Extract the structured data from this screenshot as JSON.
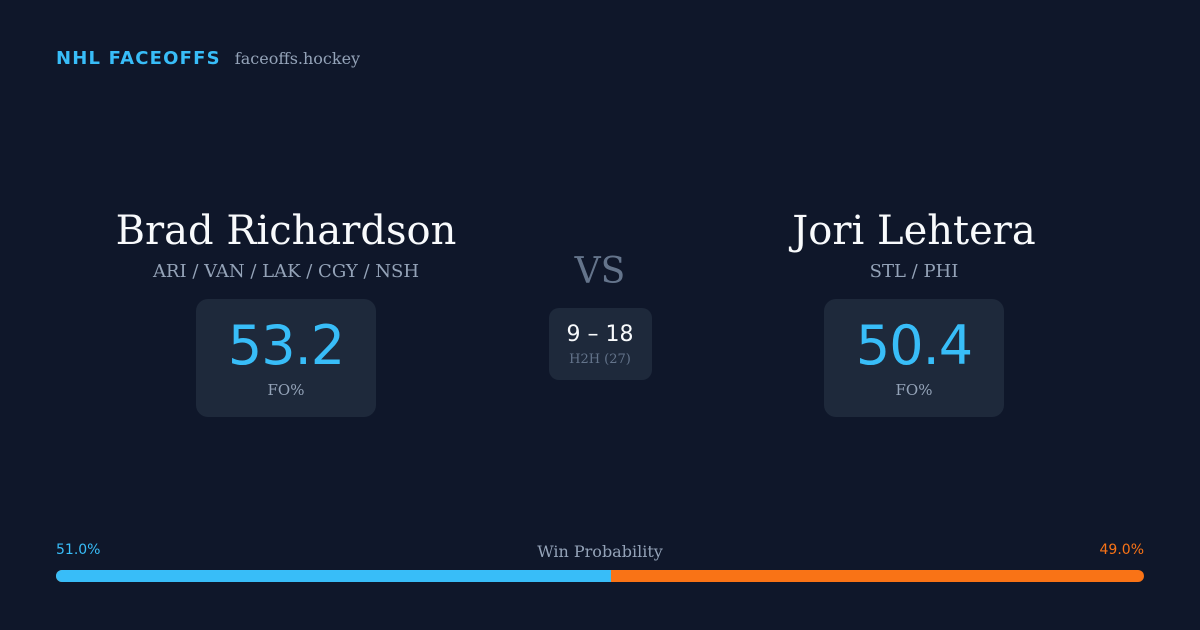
{
  "brand": {
    "name": "NHL FACEOFFS",
    "domain": "faceoffs.hockey"
  },
  "player_left": {
    "name": "Brad Richardson",
    "teams": "ARI / VAN / LAK / CGY / NSH",
    "stat_value": "53.2",
    "stat_label": "FO%"
  },
  "player_right": {
    "name": "Jori Lehtera",
    "teams": "STL / PHI",
    "stat_value": "50.4",
    "stat_label": "FO%"
  },
  "matchup": {
    "vs_label": "VS",
    "h2h_score": "9 – 18",
    "h2h_label": "H2H (27)"
  },
  "win_probability": {
    "title": "Win Probability",
    "left_pct_label": "51.0%",
    "right_pct_label": "49.0%",
    "left_fraction": 0.51,
    "left_color": "#38bdf8",
    "right_color": "#f97316"
  }
}
